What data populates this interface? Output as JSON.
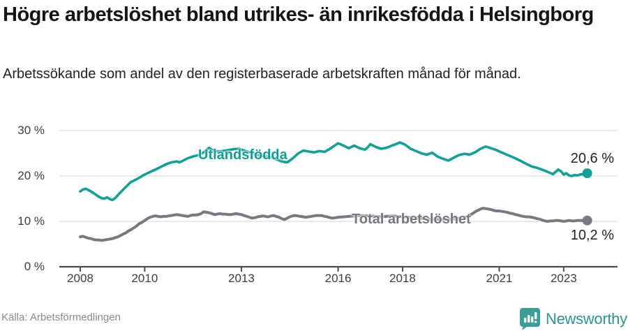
{
  "header": {
    "title": "Högre arbetslöshet bland utrikes- än inrikesfödda i Helsingborg",
    "subtitle": "Arbetssökande som andel av den registerbaserade arbetskraften månad för månad."
  },
  "footer": {
    "source": "Källa: Arbetsförmedlingen",
    "brand": "Newsworthy"
  },
  "colors": {
    "series_foreign": "#0fa096",
    "series_total": "#797880",
    "grid": "#e2e2e2",
    "axis": "#4d4d4d",
    "brand_teal": "#3a9e96"
  },
  "chart_data": {
    "type": "line",
    "title": "Högre arbetslöshet bland utrikes- än inrikesfödda i Helsingborg",
    "subtitle": "Arbetssökande som andel av den registerbaserade arbetskraften månad för månad.",
    "unit": "%",
    "grid": true,
    "legend_position": "inline-labels",
    "xlim": [
      2007.35,
      2024.67
    ],
    "ylim": [
      0,
      34
    ],
    "x_ticks": [
      {
        "value": 2008,
        "label": "2008"
      },
      {
        "value": 2010,
        "label": "2010"
      },
      {
        "value": 2013,
        "label": "2013"
      },
      {
        "value": 2016,
        "label": "2016"
      },
      {
        "value": 2018,
        "label": "2018"
      },
      {
        "value": 2021,
        "label": "2021"
      },
      {
        "value": 2023,
        "label": "2023"
      }
    ],
    "y_ticks": [
      {
        "value": 0,
        "label": "0 %"
      },
      {
        "value": 10,
        "label": "10 %"
      },
      {
        "value": 20,
        "label": "20 %"
      },
      {
        "value": 30,
        "label": "30 %"
      }
    ],
    "series": [
      {
        "name": "Utlandsfödda",
        "color_key": "series_foreign",
        "end_label": "20,6 %",
        "end_value": 20.6,
        "points": [
          [
            2008.0,
            16.6
          ],
          [
            2008.08,
            17.0
          ],
          [
            2008.17,
            17.2
          ],
          [
            2008.25,
            16.9
          ],
          [
            2008.33,
            16.6
          ],
          [
            2008.42,
            16.2
          ],
          [
            2008.5,
            15.8
          ],
          [
            2008.58,
            15.4
          ],
          [
            2008.67,
            15.1
          ],
          [
            2008.75,
            15.0
          ],
          [
            2008.83,
            15.3
          ],
          [
            2008.92,
            14.9
          ],
          [
            2009.0,
            14.7
          ],
          [
            2009.08,
            15.1
          ],
          [
            2009.17,
            15.8
          ],
          [
            2009.25,
            16.4
          ],
          [
            2009.33,
            17.0
          ],
          [
            2009.42,
            17.6
          ],
          [
            2009.5,
            18.2
          ],
          [
            2009.58,
            18.7
          ],
          [
            2009.67,
            19.0
          ],
          [
            2009.75,
            19.3
          ],
          [
            2009.83,
            19.6
          ],
          [
            2009.92,
            20.0
          ],
          [
            2010.0,
            20.3
          ],
          [
            2010.17,
            20.9
          ],
          [
            2010.33,
            21.4
          ],
          [
            2010.5,
            22.0
          ],
          [
            2010.67,
            22.6
          ],
          [
            2010.83,
            23.0
          ],
          [
            2011.0,
            23.2
          ],
          [
            2011.08,
            23.0
          ],
          [
            2011.17,
            23.3
          ],
          [
            2011.33,
            23.9
          ],
          [
            2011.5,
            24.3
          ],
          [
            2011.67,
            24.6
          ],
          [
            2011.83,
            25.2
          ],
          [
            2011.92,
            25.8
          ],
          [
            2012.0,
            26.2
          ],
          [
            2012.08,
            25.8
          ],
          [
            2012.25,
            25.4
          ],
          [
            2012.42,
            25.5
          ],
          [
            2012.58,
            25.7
          ],
          [
            2012.75,
            25.9
          ],
          [
            2012.92,
            26.0
          ],
          [
            2013.08,
            25.6
          ],
          [
            2013.25,
            25.2
          ],
          [
            2013.42,
            24.8
          ],
          [
            2013.58,
            24.5
          ],
          [
            2013.75,
            24.4
          ],
          [
            2013.92,
            24.1
          ],
          [
            2014.08,
            23.7
          ],
          [
            2014.25,
            23.2
          ],
          [
            2014.42,
            23.0
          ],
          [
            2014.58,
            23.8
          ],
          [
            2014.75,
            24.9
          ],
          [
            2014.92,
            25.6
          ],
          [
            2015.08,
            25.4
          ],
          [
            2015.25,
            25.2
          ],
          [
            2015.42,
            25.5
          ],
          [
            2015.58,
            25.3
          ],
          [
            2015.75,
            26.0
          ],
          [
            2015.92,
            26.8
          ],
          [
            2016.0,
            27.2
          ],
          [
            2016.17,
            26.7
          ],
          [
            2016.33,
            26.1
          ],
          [
            2016.5,
            26.7
          ],
          [
            2016.67,
            26.1
          ],
          [
            2016.83,
            25.8
          ],
          [
            2016.92,
            26.3
          ],
          [
            2017.0,
            27.0
          ],
          [
            2017.17,
            26.4
          ],
          [
            2017.33,
            26.0
          ],
          [
            2017.5,
            26.2
          ],
          [
            2017.67,
            26.7
          ],
          [
            2017.83,
            27.1
          ],
          [
            2017.92,
            27.4
          ],
          [
            2018.08,
            26.9
          ],
          [
            2018.25,
            26.0
          ],
          [
            2018.42,
            25.5
          ],
          [
            2018.58,
            25.0
          ],
          [
            2018.75,
            24.7
          ],
          [
            2018.92,
            25.1
          ],
          [
            2019.08,
            24.3
          ],
          [
            2019.25,
            23.8
          ],
          [
            2019.42,
            23.4
          ],
          [
            2019.58,
            24.0
          ],
          [
            2019.75,
            24.6
          ],
          [
            2019.92,
            24.9
          ],
          [
            2020.08,
            24.7
          ],
          [
            2020.25,
            25.2
          ],
          [
            2020.42,
            26.0
          ],
          [
            2020.58,
            26.5
          ],
          [
            2020.75,
            26.1
          ],
          [
            2020.92,
            25.7
          ],
          [
            2021.0,
            25.4
          ],
          [
            2021.17,
            24.9
          ],
          [
            2021.33,
            24.4
          ],
          [
            2021.5,
            23.9
          ],
          [
            2021.67,
            23.3
          ],
          [
            2021.83,
            22.7
          ],
          [
            2022.0,
            22.1
          ],
          [
            2022.17,
            21.8
          ],
          [
            2022.33,
            21.4
          ],
          [
            2022.5,
            20.9
          ],
          [
            2022.67,
            20.4
          ],
          [
            2022.83,
            21.4
          ],
          [
            2022.92,
            21.0
          ],
          [
            2023.0,
            20.3
          ],
          [
            2023.08,
            20.6
          ],
          [
            2023.17,
            20.1
          ],
          [
            2023.25,
            20.0
          ],
          [
            2023.33,
            20.2
          ],
          [
            2023.42,
            20.1
          ],
          [
            2023.5,
            20.3
          ],
          [
            2023.58,
            20.4
          ],
          [
            2023.73,
            20.6
          ]
        ]
      },
      {
        "name": "Total arbetslöshet",
        "color_key": "series_total",
        "end_label": "10,2 %",
        "end_value": 10.2,
        "points": [
          [
            2008.0,
            6.6
          ],
          [
            2008.08,
            6.7
          ],
          [
            2008.17,
            6.5
          ],
          [
            2008.25,
            6.3
          ],
          [
            2008.33,
            6.2
          ],
          [
            2008.42,
            6.0
          ],
          [
            2008.5,
            5.9
          ],
          [
            2008.58,
            5.9
          ],
          [
            2008.67,
            5.8
          ],
          [
            2008.75,
            5.9
          ],
          [
            2008.83,
            6.0
          ],
          [
            2008.92,
            6.1
          ],
          [
            2009.0,
            6.2
          ],
          [
            2009.08,
            6.4
          ],
          [
            2009.17,
            6.6
          ],
          [
            2009.25,
            6.9
          ],
          [
            2009.33,
            7.2
          ],
          [
            2009.42,
            7.5
          ],
          [
            2009.5,
            7.9
          ],
          [
            2009.58,
            8.2
          ],
          [
            2009.67,
            8.6
          ],
          [
            2009.75,
            9.0
          ],
          [
            2009.83,
            9.5
          ],
          [
            2009.92,
            9.8
          ],
          [
            2010.0,
            10.2
          ],
          [
            2010.08,
            10.6
          ],
          [
            2010.17,
            10.9
          ],
          [
            2010.25,
            11.1
          ],
          [
            2010.33,
            11.2
          ],
          [
            2010.42,
            11.1
          ],
          [
            2010.5,
            11.0
          ],
          [
            2010.58,
            11.1
          ],
          [
            2010.67,
            11.1
          ],
          [
            2010.75,
            11.2
          ],
          [
            2010.83,
            11.3
          ],
          [
            2010.92,
            11.4
          ],
          [
            2011.0,
            11.5
          ],
          [
            2011.08,
            11.4
          ],
          [
            2011.17,
            11.3
          ],
          [
            2011.25,
            11.2
          ],
          [
            2011.33,
            11.1
          ],
          [
            2011.42,
            11.3
          ],
          [
            2011.5,
            11.4
          ],
          [
            2011.58,
            11.4
          ],
          [
            2011.67,
            11.5
          ],
          [
            2011.75,
            11.7
          ],
          [
            2011.83,
            12.1
          ],
          [
            2011.92,
            12.0
          ],
          [
            2012.0,
            11.9
          ],
          [
            2012.08,
            11.7
          ],
          [
            2012.17,
            11.5
          ],
          [
            2012.25,
            11.6
          ],
          [
            2012.33,
            11.7
          ],
          [
            2012.42,
            11.6
          ],
          [
            2012.5,
            11.6
          ],
          [
            2012.58,
            11.5
          ],
          [
            2012.67,
            11.5
          ],
          [
            2012.75,
            11.6
          ],
          [
            2012.83,
            11.7
          ],
          [
            2012.92,
            11.6
          ],
          [
            2013.0,
            11.5
          ],
          [
            2013.08,
            11.3
          ],
          [
            2013.17,
            11.1
          ],
          [
            2013.25,
            10.9
          ],
          [
            2013.33,
            10.7
          ],
          [
            2013.42,
            10.8
          ],
          [
            2013.5,
            11.0
          ],
          [
            2013.58,
            11.1
          ],
          [
            2013.67,
            11.2
          ],
          [
            2013.75,
            11.1
          ],
          [
            2013.83,
            11.0
          ],
          [
            2013.92,
            11.2
          ],
          [
            2014.0,
            11.3
          ],
          [
            2014.08,
            11.1
          ],
          [
            2014.17,
            10.9
          ],
          [
            2014.25,
            10.6
          ],
          [
            2014.33,
            10.4
          ],
          [
            2014.42,
            10.7
          ],
          [
            2014.5,
            11.0
          ],
          [
            2014.58,
            11.2
          ],
          [
            2014.67,
            11.3
          ],
          [
            2014.75,
            11.2
          ],
          [
            2014.83,
            11.1
          ],
          [
            2014.92,
            11.0
          ],
          [
            2015.0,
            10.9
          ],
          [
            2015.08,
            11.0
          ],
          [
            2015.17,
            11.1
          ],
          [
            2015.25,
            11.2
          ],
          [
            2015.33,
            11.3
          ],
          [
            2015.42,
            11.3
          ],
          [
            2015.5,
            11.3
          ],
          [
            2015.58,
            11.1
          ],
          [
            2015.67,
            11.0
          ],
          [
            2015.75,
            10.8
          ],
          [
            2015.83,
            10.7
          ],
          [
            2015.92,
            10.8
          ],
          [
            2016.0,
            10.9
          ],
          [
            2016.17,
            11.0
          ],
          [
            2016.33,
            11.1
          ],
          [
            2016.5,
            11.2
          ],
          [
            2016.67,
            11.3
          ],
          [
            2016.83,
            11.2
          ],
          [
            2017.0,
            11.2
          ],
          [
            2017.17,
            11.1
          ],
          [
            2017.33,
            11.0
          ],
          [
            2017.5,
            11.1
          ],
          [
            2017.67,
            11.2
          ],
          [
            2017.83,
            11.1
          ],
          [
            2018.0,
            11.0
          ],
          [
            2018.17,
            10.9
          ],
          [
            2018.33,
            10.8
          ],
          [
            2018.5,
            10.7
          ],
          [
            2018.67,
            10.6
          ],
          [
            2018.83,
            10.5
          ],
          [
            2019.0,
            10.5
          ],
          [
            2019.17,
            10.4
          ],
          [
            2019.33,
            10.4
          ],
          [
            2019.5,
            10.5
          ],
          [
            2019.67,
            10.6
          ],
          [
            2019.83,
            10.8
          ],
          [
            2020.0,
            11.0
          ],
          [
            2020.08,
            11.3
          ],
          [
            2020.17,
            11.7
          ],
          [
            2020.25,
            12.1
          ],
          [
            2020.33,
            12.4
          ],
          [
            2020.42,
            12.7
          ],
          [
            2020.5,
            12.9
          ],
          [
            2020.58,
            12.8
          ],
          [
            2020.67,
            12.7
          ],
          [
            2020.75,
            12.6
          ],
          [
            2020.83,
            12.4
          ],
          [
            2020.92,
            12.3
          ],
          [
            2021.0,
            12.3
          ],
          [
            2021.08,
            12.2
          ],
          [
            2021.17,
            12.1
          ],
          [
            2021.25,
            12.0
          ],
          [
            2021.33,
            11.8
          ],
          [
            2021.42,
            11.7
          ],
          [
            2021.5,
            11.5
          ],
          [
            2021.58,
            11.4
          ],
          [
            2021.67,
            11.2
          ],
          [
            2021.75,
            11.1
          ],
          [
            2021.83,
            11.0
          ],
          [
            2021.92,
            11.0
          ],
          [
            2022.0,
            10.9
          ],
          [
            2022.08,
            10.8
          ],
          [
            2022.17,
            10.6
          ],
          [
            2022.25,
            10.5
          ],
          [
            2022.33,
            10.3
          ],
          [
            2022.42,
            10.1
          ],
          [
            2022.5,
            10.0
          ],
          [
            2022.58,
            10.1
          ],
          [
            2022.67,
            10.1
          ],
          [
            2022.75,
            10.2
          ],
          [
            2022.83,
            10.2
          ],
          [
            2022.92,
            10.1
          ],
          [
            2023.0,
            10.0
          ],
          [
            2023.08,
            10.1
          ],
          [
            2023.17,
            10.2
          ],
          [
            2023.25,
            10.1
          ],
          [
            2023.33,
            10.1
          ],
          [
            2023.42,
            10.2
          ],
          [
            2023.5,
            10.2
          ],
          [
            2023.58,
            10.2
          ],
          [
            2023.73,
            10.2
          ]
        ]
      }
    ]
  }
}
